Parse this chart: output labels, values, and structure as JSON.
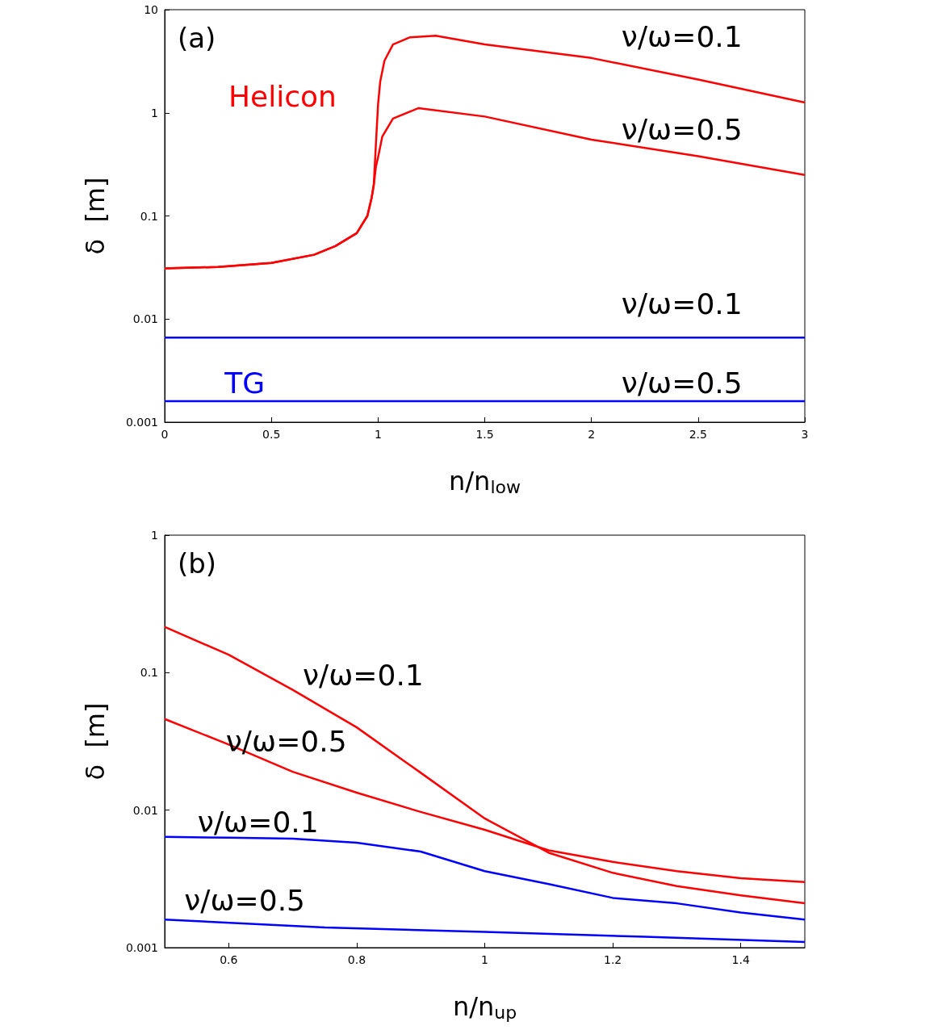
{
  "chart_data": [
    {
      "type": "line",
      "title": "(a)",
      "xlabel": "n/n$_{low}$",
      "ylabel": "δ  [m]",
      "log": "y",
      "xlim": [
        0,
        3
      ],
      "xticks": [
        0,
        0.5,
        1,
        1.5,
        2,
        2.5,
        3
      ],
      "ylim": [
        0.001,
        10
      ],
      "yticks": [
        0.001,
        0.01,
        0.1,
        1,
        10
      ],
      "grid": false,
      "marker": "none",
      "line_style": "solid",
      "series": [
        {
          "name": "ν/ω=0.1",
          "color": "#ff0000",
          "x": [
            0,
            0.25,
            0.5,
            0.7,
            0.8,
            0.9,
            0.95,
            0.97,
            0.98,
            0.99,
            1.0,
            1.01,
            1.03,
            1.07,
            1.15,
            1.27,
            1.5,
            2,
            2.5,
            3
          ],
          "values": [
            0.031,
            0.032,
            0.035,
            0.042,
            0.051,
            0.068,
            0.1,
            0.15,
            0.2,
            0.5,
            1.2,
            2.0,
            3.2,
            4.6,
            5.4,
            5.6,
            4.6,
            3.4,
            2.1,
            1.26
          ]
        },
        {
          "name": "ν/ω=0.5",
          "color": "#ff0000",
          "x": [
            0,
            0.25,
            0.5,
            0.7,
            0.8,
            0.9,
            0.95,
            0.97,
            0.98,
            0.99,
            1.0,
            1.02,
            1.07,
            1.19,
            1.5,
            2,
            2.5,
            3
          ],
          "values": [
            0.031,
            0.032,
            0.035,
            0.042,
            0.051,
            0.068,
            0.1,
            0.15,
            0.2,
            0.3,
            0.37,
            0.59,
            0.88,
            1.11,
            0.92,
            0.55,
            0.38,
            0.25
          ]
        },
        {
          "name": "ν/ω=0.1",
          "color": "#0000ff",
          "x": [
            0,
            3
          ],
          "values": [
            0.0066,
            0.0066
          ]
        },
        {
          "name": "ν/ω=0.5",
          "color": "#0000ff",
          "x": [
            0,
            3
          ],
          "values": [
            0.0016,
            0.0016
          ]
        }
      ],
      "annotations": [
        "Helicon",
        "TG"
      ]
    },
    {
      "type": "line",
      "title": "(b)",
      "xlabel": "n/n$_{up}$",
      "ylabel": "δ  [m]",
      "log": "y",
      "xlim": [
        0.5,
        1.5
      ],
      "xticks": [
        0.6,
        0.8,
        1,
        1.2,
        1.4
      ],
      "ylim": [
        0.001,
        1
      ],
      "yticks": [
        0.001,
        0.01,
        0.1,
        1
      ],
      "grid": false,
      "marker": "none",
      "line_style": "solid",
      "series": [
        {
          "name": "ν/ω=0.1",
          "color": "#ff0000",
          "x": [
            0.5,
            0.6,
            0.7,
            0.8,
            0.9,
            1.0,
            1.1,
            1.2,
            1.3,
            1.4,
            1.5
          ],
          "values": [
            0.215,
            0.135,
            0.075,
            0.04,
            0.0187,
            0.0087,
            0.0049,
            0.0035,
            0.0028,
            0.0024,
            0.0021
          ]
        },
        {
          "name": "ν/ω=0.5",
          "color": "#ff0000",
          "x": [
            0.5,
            0.6,
            0.7,
            0.8,
            0.9,
            1.0,
            1.1,
            1.2,
            1.3,
            1.4,
            1.5
          ],
          "values": [
            0.046,
            0.03,
            0.019,
            0.0134,
            0.0097,
            0.0072,
            0.0051,
            0.0042,
            0.0036,
            0.0032,
            0.003
          ]
        },
        {
          "name": "ν/ω=0.1",
          "color": "#0000ff",
          "x": [
            0.5,
            0.6,
            0.7,
            0.8,
            0.9,
            1.0,
            1.1,
            1.2,
            1.3,
            1.4,
            1.5
          ],
          "values": [
            0.0064,
            0.0063,
            0.0062,
            0.0058,
            0.005,
            0.0036,
            0.0029,
            0.0023,
            0.0021,
            0.0018,
            0.0016
          ]
        },
        {
          "name": "ν/ω=0.5",
          "color": "#0000ff",
          "x": [
            0.5,
            0.75,
            1.0,
            1.25,
            1.5
          ],
          "values": [
            0.0016,
            0.0014,
            0.0013,
            0.0012,
            0.0011
          ]
        }
      ]
    }
  ]
}
